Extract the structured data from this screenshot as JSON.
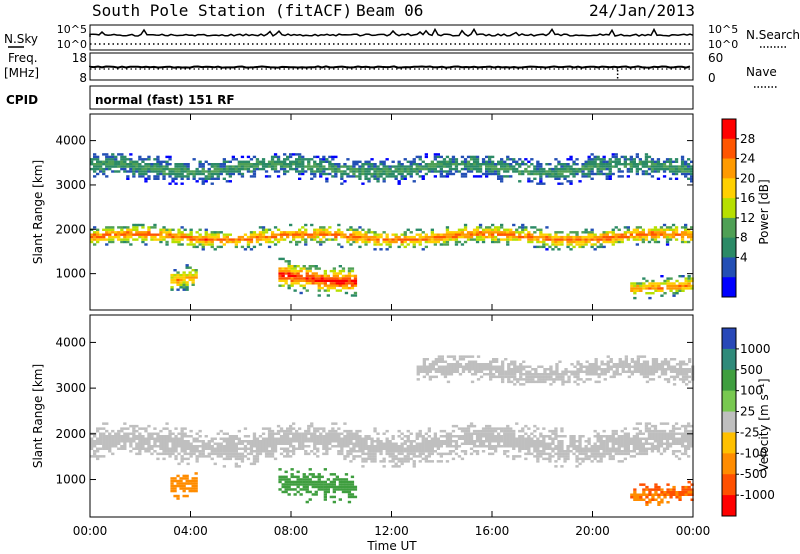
{
  "header": {
    "title": "South Pole Station (fitACF)",
    "beam": "Beam 06",
    "date": "24/Jan/2013"
  },
  "panels": {
    "nsky_label": "N.Sky",
    "nsky_ticks": [
      "10^5",
      "10^0"
    ],
    "nsearch_label": "N.Search",
    "freq_label_1": "Freq.",
    "freq_label_2": "[MHz]",
    "freq_ticks": [
      "18",
      "8"
    ],
    "nave_ticks": [
      "60",
      "0"
    ],
    "nave_label": "Nave",
    "cpid_label": "CPID",
    "cpid_value": "normal (fast) 151 RF"
  },
  "colorbars": {
    "power": {
      "label": "Power [dB]",
      "ticks": [
        "28",
        "24",
        "20",
        "16",
        "12",
        "8",
        "4"
      ],
      "colors": [
        "#ff0000",
        "#ff5500",
        "#ff9a00",
        "#ffd000",
        "#b7df00",
        "#4fa055",
        "#2b8a66",
        "#234fb5",
        "#0000ff"
      ]
    },
    "velocity": {
      "label": "Velocity [m s⁻¹]",
      "ticks": [
        "1000",
        "500",
        "100",
        "25",
        "-25",
        "-100",
        "-500",
        "-1000"
      ],
      "colors": [
        "#2848b8",
        "#2f8a7a",
        "#3f9e3f",
        "#78c850",
        "#bfbfbf",
        "#ffc000",
        "#ff8c00",
        "#ff5000",
        "#ff0000"
      ]
    }
  },
  "chart_data": [
    {
      "type": "heatmap",
      "title": "Power",
      "ylabel": "Slant Range [km]",
      "ylim": [
        180,
        4600
      ],
      "yticks": [
        "4000",
        "3000",
        "2000",
        "1000"
      ],
      "xlim": [
        "00:00",
        "24:00"
      ],
      "bands": [
        {
          "t_start": 0,
          "t_end": 24,
          "r_lo": 1600,
          "r_hi": 2000,
          "peak_power_db": 26
        },
        {
          "t_start": 0,
          "t_end": 24,
          "r_lo": 3100,
          "r_hi": 3600,
          "peak_power_db": 10
        },
        {
          "t_start": 7.5,
          "t_end": 10.5,
          "r_lo": 600,
          "r_hi": 1200,
          "peak_power_db": 30
        },
        {
          "t_start": 3.2,
          "t_end": 4.2,
          "r_lo": 600,
          "r_hi": 1100,
          "peak_power_db": 22
        },
        {
          "t_start": 21.5,
          "t_end": 24,
          "r_lo": 500,
          "r_hi": 900,
          "peak_power_db": 24
        }
      ]
    },
    {
      "type": "heatmap",
      "title": "Velocity",
      "xlabel": "Time UT",
      "ylabel": "Slant Range [km]",
      "ylim": [
        180,
        4600
      ],
      "yticks": [
        "4000",
        "3000",
        "2000",
        "1000"
      ],
      "xticks": [
        "00:00",
        "04:00",
        "08:00",
        "12:00",
        "16:00",
        "20:00",
        "00:00"
      ],
      "bands": [
        {
          "t_start": 0,
          "t_end": 24,
          "r_lo": 1400,
          "r_hi": 2100,
          "velocity_ms": 0
        },
        {
          "t_start": 13,
          "t_end": 24,
          "r_lo": 3100,
          "r_hi": 3600,
          "velocity_ms": 0
        },
        {
          "t_start": 7.5,
          "t_end": 10.5,
          "r_lo": 600,
          "r_hi": 1200,
          "velocity_ms": 300
        },
        {
          "t_start": 3.2,
          "t_end": 4.2,
          "r_lo": 600,
          "r_hi": 1100,
          "velocity_ms": -200
        },
        {
          "t_start": 21.5,
          "t_end": 24,
          "r_lo": 500,
          "r_hi": 900,
          "velocity_ms": -500
        }
      ]
    }
  ]
}
